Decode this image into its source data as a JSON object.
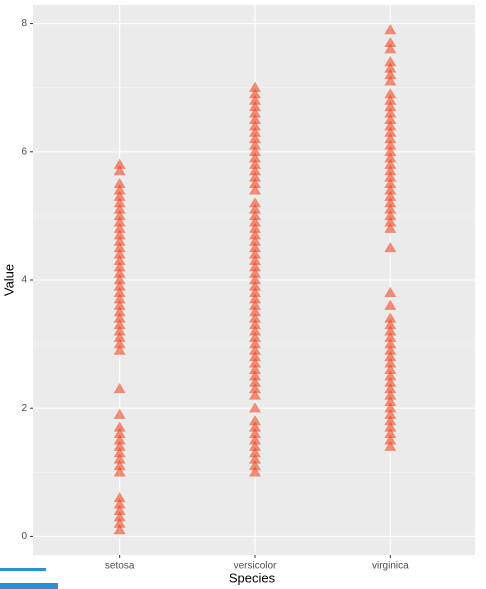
{
  "chart_data": {
    "type": "strip",
    "x_label": "Species",
    "y_label": "Value",
    "categories": [
      "setosa",
      "versicolor",
      "virginica"
    ],
    "values": [
      [
        0.1,
        0.2,
        0.3,
        0.4,
        0.5,
        0.6,
        1.0,
        1.1,
        1.2,
        1.3,
        1.4,
        1.5,
        1.6,
        1.7,
        1.9,
        2.3,
        2.9,
        3.0,
        3.1,
        3.2,
        3.3,
        3.4,
        3.5,
        3.6,
        3.7,
        3.8,
        3.9,
        4.0,
        4.1,
        4.2,
        4.3,
        4.4,
        4.5,
        4.6,
        4.7,
        4.8,
        4.9,
        5.0,
        5.1,
        5.2,
        5.3,
        5.4,
        5.5,
        5.7,
        5.8
      ],
      [
        1.0,
        1.1,
        1.2,
        1.3,
        1.4,
        1.5,
        1.6,
        1.7,
        1.8,
        2.0,
        2.2,
        2.3,
        2.4,
        2.5,
        2.6,
        2.7,
        2.8,
        2.9,
        3.0,
        3.1,
        3.2,
        3.3,
        3.4,
        3.5,
        3.6,
        3.7,
        3.8,
        3.9,
        4.0,
        4.1,
        4.2,
        4.3,
        4.4,
        4.5,
        4.6,
        4.7,
        4.8,
        4.9,
        5.0,
        5.1,
        5.2,
        5.4,
        5.5,
        5.6,
        5.7,
        5.8,
        5.9,
        6.0,
        6.1,
        6.2,
        6.3,
        6.4,
        6.5,
        6.6,
        6.7,
        6.8,
        6.9,
        7.0
      ],
      [
        1.4,
        1.5,
        1.6,
        1.7,
        1.8,
        1.9,
        2.0,
        2.1,
        2.2,
        2.3,
        2.4,
        2.5,
        2.6,
        2.7,
        2.8,
        2.9,
        3.0,
        3.1,
        3.2,
        3.3,
        3.4,
        3.6,
        3.8,
        4.5,
        4.8,
        4.9,
        5.0,
        5.1,
        5.2,
        5.3,
        5.4,
        5.5,
        5.6,
        5.7,
        5.8,
        5.9,
        6.0,
        6.1,
        6.2,
        6.3,
        6.4,
        6.5,
        6.6,
        6.7,
        6.8,
        6.9,
        7.1,
        7.2,
        7.3,
        7.4,
        7.6,
        7.7,
        7.9
      ]
    ],
    "color": "#f03a10",
    "ylim": [
      -0.29,
      8.29
    ],
    "yticks": [
      0,
      2,
      4,
      6,
      8
    ],
    "grid": true
  }
}
